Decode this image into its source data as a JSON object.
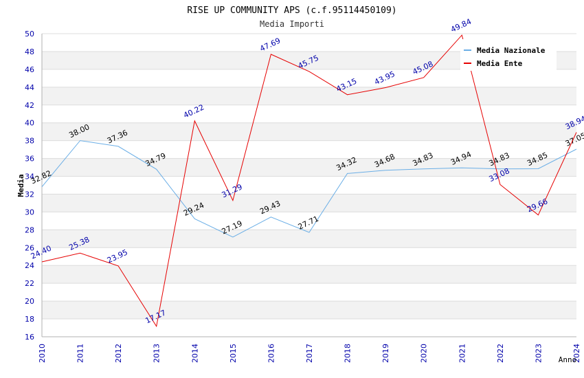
{
  "chart_data": {
    "type": "line",
    "title": "RISE UP COMMUNITY APS (c.f.95114450109)",
    "subtitle": "Media Importi",
    "xlabel": "Anno",
    "ylabel": "Media",
    "ylim": [
      16,
      50
    ],
    "ytick_step": 2,
    "grid": true,
    "legend_position": "top-right",
    "categories": [
      "2010",
      "2011",
      "2012",
      "2013",
      "2014",
      "2015",
      "2016",
      "2017",
      "2018",
      "2019",
      "2020",
      "2021",
      "2022",
      "2023",
      "2024"
    ],
    "series": [
      {
        "name": "Media Nazionale",
        "color": "#6aaee6",
        "label_color": "#000000",
        "values": [
          32.82,
          38.0,
          37.36,
          34.79,
          29.24,
          27.19,
          29.43,
          27.71,
          34.32,
          34.68,
          34.83,
          34.94,
          34.83,
          34.85,
          37.05
        ],
        "labels": [
          "32.82",
          "38.00",
          "37.36",
          "34.79",
          "29.24",
          "27.19",
          "29.43",
          "27.71",
          "34.32",
          "34.68",
          "34.83",
          "34.94",
          "34.83",
          "34.85",
          "37.05"
        ]
      },
      {
        "name": "Media Ente",
        "color": "#e60000",
        "label_color": "#0000aa",
        "values": [
          24.4,
          25.38,
          23.95,
          17.17,
          40.22,
          31.29,
          47.69,
          45.75,
          43.15,
          43.95,
          45.08,
          49.84,
          33.08,
          29.66,
          38.94
        ],
        "labels": [
          "24.40",
          "25.38",
          "23.95",
          "17.17",
          "40.22",
          "31.29",
          "47.69",
          "45.75",
          "43.15",
          "43.95",
          "45.08",
          "49.84",
          "33.08",
          "29.66",
          "38.94"
        ]
      }
    ]
  }
}
